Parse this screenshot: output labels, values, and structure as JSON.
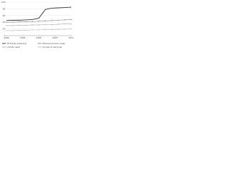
{
  "chart_data": {
    "type": "line",
    "x": [
      1990,
      1992,
      1994,
      1996,
      1998,
      2000,
      2002,
      2004,
      2006,
      2008,
      2010
    ],
    "series": [
      {
        "name": "Of family planning",
        "color": "#333333",
        "values": [
          45,
          46,
          46,
          47,
          48,
          52,
          78,
          82,
          83,
          84,
          85
        ]
      },
      {
        "name": "Married women (use)",
        "color": "#888888",
        "values": [
          40,
          40,
          41,
          41,
          42,
          43,
          44,
          45,
          46,
          47,
          48
        ]
      },
      {
        "name": "Unmet need",
        "color": "#aaaaaa",
        "values": [
          30,
          30,
          31,
          31,
          32,
          32,
          33,
          33,
          34,
          35,
          35
        ]
      },
      {
        "name": "Access to services",
        "color": "#bbbbbb",
        "values": [
          15,
          15,
          16,
          16,
          17,
          17,
          18,
          18,
          19,
          19,
          20
        ]
      }
    ],
    "xlim": [
      1990,
      2010
    ],
    "xticks": [
      1990,
      1995,
      2000,
      2005,
      2010
    ],
    "ylim": [
      0,
      100
    ],
    "yticks": [
      0,
      20,
      40,
      60,
      80,
      100
    ],
    "grid": true
  }
}
